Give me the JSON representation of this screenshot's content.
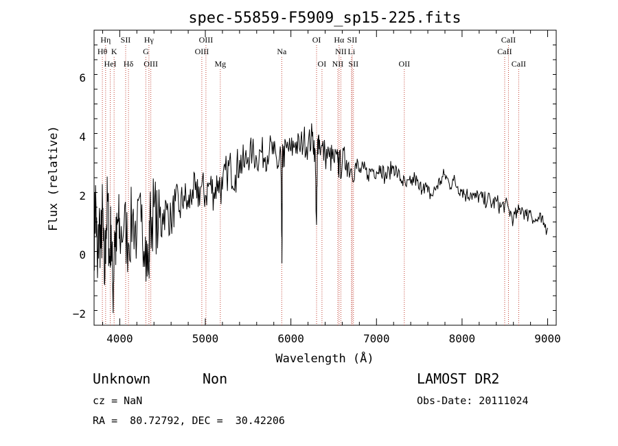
{
  "chart_data": {
    "type": "line",
    "title": "spec-55859-F5909_sp15-225.fits",
    "xlabel": "Wavelength (Å)",
    "ylabel": "Flux (relative)",
    "xlim": [
      3700,
      9100
    ],
    "ylim": [
      -2.4,
      7.6
    ],
    "x_ticks": [
      4000,
      5000,
      6000,
      7000,
      8000,
      9000
    ],
    "x_tick_labels": [
      "4000",
      "5000",
      "6000",
      "7000",
      "8000",
      "9000"
    ],
    "y_ticks": [
      -2,
      0,
      2,
      4,
      6
    ],
    "y_tick_labels": [
      "−2",
      "0",
      "2",
      "4",
      "6"
    ],
    "grid": false,
    "line_color": "#000000",
    "marker_color": "#c0392b",
    "spectrum": {
      "x": [
        3700,
        3720,
        3740,
        3760,
        3780,
        3800,
        3820,
        3840,
        3860,
        3880,
        3900,
        3920,
        3940,
        3960,
        3980,
        4000,
        4050,
        4100,
        4150,
        4200,
        4250,
        4300,
        4340,
        4350,
        4400,
        4450,
        4500,
        4550,
        4600,
        4650,
        4700,
        4750,
        4800,
        4850,
        4900,
        4950,
        5000,
        5050,
        5100,
        5150,
        5200,
        5250,
        5300,
        5350,
        5400,
        5450,
        5500,
        5550,
        5600,
        5650,
        5700,
        5750,
        5800,
        5850,
        5880,
        5890,
        5895,
        5900,
        5910,
        5950,
        6000,
        6050,
        6100,
        6150,
        6200,
        6250,
        6280,
        6300,
        6310,
        6320,
        6350,
        6400,
        6450,
        6500,
        6550,
        6563,
        6600,
        6650,
        6700,
        6750,
        6800,
        6850,
        6900,
        6950,
        7000,
        7050,
        7100,
        7150,
        7200,
        7250,
        7300,
        7350,
        7400,
        7450,
        7500,
        7550,
        7600,
        7650,
        7700,
        7750,
        7800,
        7850,
        7900,
        7950,
        8000,
        8050,
        8100,
        8150,
        8200,
        8250,
        8300,
        8350,
        8400,
        8450,
        8500,
        8550,
        8600,
        8650,
        8700,
        8750,
        8800,
        8850,
        8900,
        8950,
        9000
      ],
      "y": [
        0.5,
        2.0,
        -0.8,
        1.2,
        0.2,
        1.5,
        -1.0,
        0.9,
        1.8,
        -0.3,
        1.0,
        -1.5,
        0.8,
        0.1,
        1.2,
        0.6,
        1.0,
        0.4,
        1.3,
        0.7,
        1.1,
        0.6,
        -0.7,
        1.0,
        1.6,
        0.9,
        1.4,
        1.5,
        1.1,
        1.8,
        1.5,
        2.0,
        1.6,
        2.2,
        1.9,
        2.3,
        2.0,
        2.4,
        2.1,
        2.5,
        2.2,
        2.8,
        2.9,
        2.7,
        3.2,
        3.0,
        3.3,
        3.5,
        3.2,
        3.5,
        3.3,
        3.6,
        3.4,
        3.0,
        3.5,
        1.5,
        -0.3,
        3.2,
        3.3,
        3.6,
        3.5,
        3.8,
        3.6,
        3.9,
        3.7,
        4.0,
        3.6,
        1.0,
        3.5,
        4.0,
        3.6,
        3.4,
        3.3,
        3.2,
        3.1,
        3.0,
        3.1,
        3.2,
        2.9,
        3.0,
        2.8,
        2.9,
        2.7,
        2.9,
        2.8,
        3.0,
        2.6,
        2.8,
        3.0,
        2.7,
        2.5,
        2.3,
        2.4,
        2.6,
        2.2,
        2.4,
        2.1,
        2.0,
        2.3,
        2.5,
        2.7,
        2.4,
        2.5,
        2.3,
        2.2,
        2.0,
        2.1,
        1.9,
        2.0,
        1.8,
        1.9,
        1.7,
        1.8,
        1.6,
        1.7,
        1.5,
        1.2,
        1.4,
        1.6,
        1.3,
        1.5,
        1.1,
        1.2,
        1.0,
        0.9
      ]
    },
    "spectral_lines": [
      {
        "label": "Hη",
        "row": 0,
        "wavelength": 3835
      },
      {
        "label": "Hθ",
        "row": 1,
        "wavelength": 3797
      },
      {
        "label": "K",
        "row": 1,
        "wavelength": 3934
      },
      {
        "label": "HeI",
        "row": 2,
        "wavelength": 3889
      },
      {
        "label": "SII",
        "row": 0,
        "wavelength": 4069
      },
      {
        "label": "Hδ",
        "row": 2,
        "wavelength": 4102
      },
      {
        "label": "Hγ",
        "row": 0,
        "wavelength": 4341
      },
      {
        "label": "G",
        "row": 1,
        "wavelength": 4305
      },
      {
        "label": "OIII",
        "row": 2,
        "wavelength": 4363
      },
      {
        "label": "OIII",
        "row": 0,
        "wavelength": 5007
      },
      {
        "label": "OIII",
        "row": 1,
        "wavelength": 4959
      },
      {
        "label": "Mg",
        "row": 2,
        "wavelength": 5175
      },
      {
        "label": "Na",
        "row": 1,
        "wavelength": 5893
      },
      {
        "label": "OI",
        "row": 0,
        "wavelength": 6300
      },
      {
        "label": "OI",
        "row": 2,
        "wavelength": 6363
      },
      {
        "label": "Hα",
        "row": 0,
        "wavelength": 6563
      },
      {
        "label": "SII",
        "row": 0,
        "wavelength": 6716
      },
      {
        "label": "NII",
        "row": 1,
        "wavelength": 6584
      },
      {
        "label": "Li",
        "row": 1,
        "wavelength": 6708
      },
      {
        "label": "NII",
        "row": 2,
        "wavelength": 6548
      },
      {
        "label": "SII",
        "row": 2,
        "wavelength": 6731
      },
      {
        "label": "OII",
        "row": 2,
        "wavelength": 7325
      },
      {
        "label": "CaII",
        "row": 0,
        "wavelength": 8542
      },
      {
        "label": "CaII",
        "row": 1,
        "wavelength": 8498
      },
      {
        "label": "CaII",
        "row": 2,
        "wavelength": 8662
      }
    ]
  },
  "footer": {
    "class_label": "Unknown",
    "subclass_label": "Non",
    "survey": "LAMOST DR2",
    "cz": "cz = NaN",
    "obs_date": "Obs-Date: 20111024",
    "coords": "RA =  80.72792, DEC =  30.42206"
  }
}
